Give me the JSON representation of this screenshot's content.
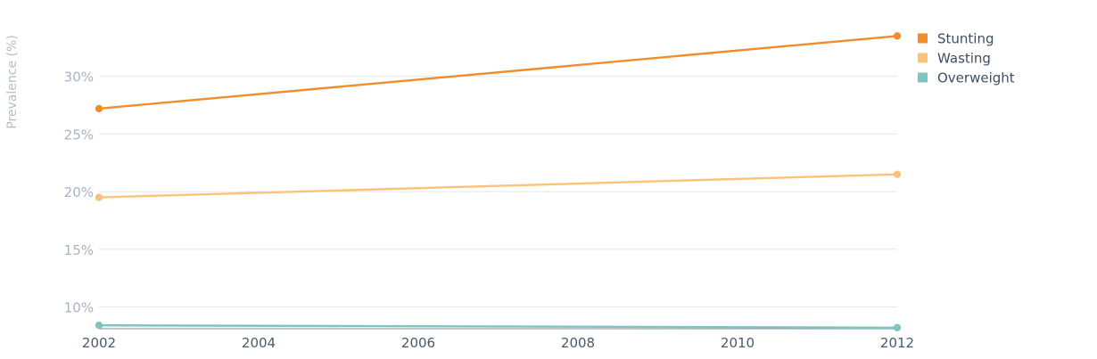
{
  "chart_data": {
    "type": "line",
    "x": [
      2002,
      2012
    ],
    "xticks": [
      "2002",
      "2004",
      "2006",
      "2008",
      "2010",
      "2012"
    ],
    "xlim": [
      2002,
      2012
    ],
    "ylim": [
      8,
      35
    ],
    "yticks": [
      10,
      15,
      20,
      25,
      30
    ],
    "ytick_labels": [
      "10%",
      "15%",
      "20%",
      "25%",
      "30%"
    ],
    "ylabel": "Prevalence (%)",
    "xlabel": "",
    "title": "",
    "grid": true,
    "legend_position": "top-right",
    "series": [
      {
        "name": "Stunting",
        "values": [
          27.2,
          33.5
        ],
        "color": "#f28c28"
      },
      {
        "name": "Wasting",
        "values": [
          19.5,
          21.5
        ],
        "color": "#fcc27a"
      },
      {
        "name": "Overweight",
        "values": [
          8.4,
          8.2
        ],
        "color": "#7ec4c0"
      }
    ]
  }
}
